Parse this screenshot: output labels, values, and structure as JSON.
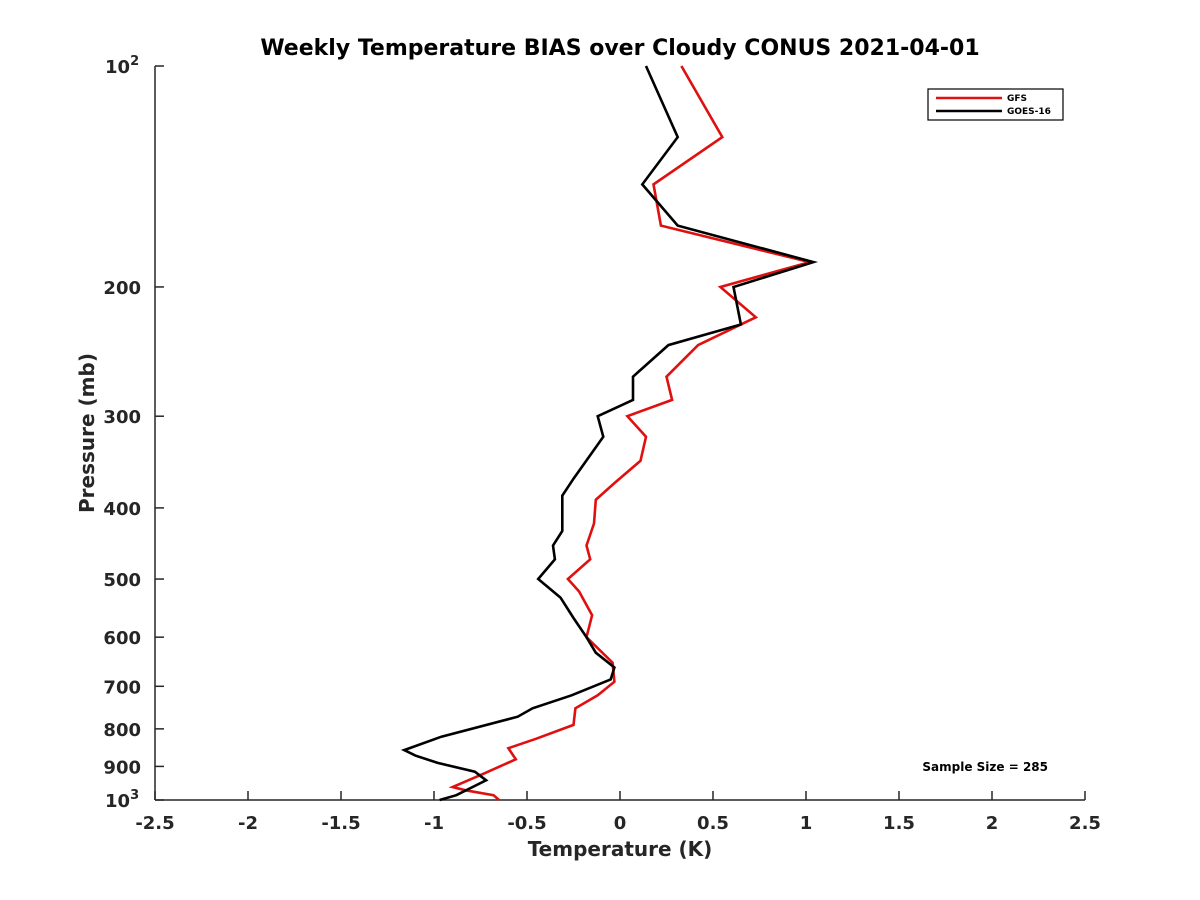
{
  "chart_data": {
    "type": "line",
    "title": "Weekly Temperature BIAS over Cloudy CONUS 2021-04-01",
    "xlabel": "Temperature (K)",
    "ylabel": "Pressure (mb)",
    "xlim": [
      -2.5,
      2.5
    ],
    "ylim": [
      1000,
      100
    ],
    "y_scale": "log",
    "y_reversed": true,
    "grid": false,
    "legend_position": "top-right",
    "x_ticks": [
      {
        "value": -2.5,
        "label": "-2.5"
      },
      {
        "value": -2,
        "label": "-2"
      },
      {
        "value": -1.5,
        "label": "-1.5"
      },
      {
        "value": -1,
        "label": "-1"
      },
      {
        "value": -0.5,
        "label": "-0.5"
      },
      {
        "value": 0,
        "label": "0"
      },
      {
        "value": 0.5,
        "label": "0.5"
      },
      {
        "value": 1,
        "label": "1"
      },
      {
        "value": 1.5,
        "label": "1.5"
      },
      {
        "value": 2,
        "label": "2"
      },
      {
        "value": 2.5,
        "label": "2.5"
      }
    ],
    "y_ticks": [
      {
        "value": 100,
        "base": "10",
        "exp": "2"
      },
      {
        "value": 200,
        "label": "200"
      },
      {
        "value": 300,
        "label": "300"
      },
      {
        "value": 400,
        "label": "400"
      },
      {
        "value": 500,
        "label": "500"
      },
      {
        "value": 600,
        "label": "600"
      },
      {
        "value": 700,
        "label": "700"
      },
      {
        "value": 800,
        "label": "800"
      },
      {
        "value": 900,
        "label": "900"
      },
      {
        "value": 1000,
        "base": "10",
        "exp": "3"
      }
    ],
    "series": [
      {
        "name": "GFS",
        "color": "#e01010",
        "points": [
          {
            "t": 0.33,
            "p": 100
          },
          {
            "t": 0.55,
            "p": 125
          },
          {
            "t": 0.18,
            "p": 145
          },
          {
            "t": 0.22,
            "p": 165
          },
          {
            "t": 1.02,
            "p": 185
          },
          {
            "t": 0.54,
            "p": 200
          },
          {
            "t": 0.73,
            "p": 220
          },
          {
            "t": 0.42,
            "p": 240
          },
          {
            "t": 0.25,
            "p": 265
          },
          {
            "t": 0.28,
            "p": 285
          },
          {
            "t": 0.04,
            "p": 300
          },
          {
            "t": 0.14,
            "p": 320
          },
          {
            "t": 0.11,
            "p": 345
          },
          {
            "t": -0.03,
            "p": 370
          },
          {
            "t": -0.13,
            "p": 390
          },
          {
            "t": -0.14,
            "p": 420
          },
          {
            "t": -0.18,
            "p": 450
          },
          {
            "t": -0.16,
            "p": 470
          },
          {
            "t": -0.28,
            "p": 500
          },
          {
            "t": -0.22,
            "p": 520
          },
          {
            "t": -0.15,
            "p": 560
          },
          {
            "t": -0.18,
            "p": 600
          },
          {
            "t": -0.04,
            "p": 650
          },
          {
            "t": -0.03,
            "p": 690
          },
          {
            "t": -0.12,
            "p": 720
          },
          {
            "t": -0.24,
            "p": 750
          },
          {
            "t": -0.25,
            "p": 790
          },
          {
            "t": -0.45,
            "p": 825
          },
          {
            "t": -0.6,
            "p": 850
          },
          {
            "t": -0.56,
            "p": 880
          },
          {
            "t": -0.73,
            "p": 920
          },
          {
            "t": -0.9,
            "p": 960
          },
          {
            "t": -0.83,
            "p": 970
          },
          {
            "t": -0.68,
            "p": 985
          },
          {
            "t": -0.65,
            "p": 1000
          }
        ]
      },
      {
        "name": "GOES-16",
        "color": "#000000",
        "points": [
          {
            "t": 0.14,
            "p": 100
          },
          {
            "t": 0.31,
            "p": 125
          },
          {
            "t": 0.12,
            "p": 145
          },
          {
            "t": 0.31,
            "p": 165
          },
          {
            "t": 1.04,
            "p": 185
          },
          {
            "t": 0.61,
            "p": 200
          },
          {
            "t": 0.65,
            "p": 225
          },
          {
            "t": 0.26,
            "p": 240
          },
          {
            "t": 0.07,
            "p": 265
          },
          {
            "t": 0.07,
            "p": 285
          },
          {
            "t": -0.12,
            "p": 300
          },
          {
            "t": -0.09,
            "p": 320
          },
          {
            "t": -0.25,
            "p": 365
          },
          {
            "t": -0.31,
            "p": 385
          },
          {
            "t": -0.31,
            "p": 430
          },
          {
            "t": -0.36,
            "p": 450
          },
          {
            "t": -0.35,
            "p": 470
          },
          {
            "t": -0.44,
            "p": 500
          },
          {
            "t": -0.32,
            "p": 530
          },
          {
            "t": -0.25,
            "p": 565
          },
          {
            "t": -0.18,
            "p": 600
          },
          {
            "t": -0.13,
            "p": 630
          },
          {
            "t": -0.03,
            "p": 660
          },
          {
            "t": -0.05,
            "p": 685
          },
          {
            "t": -0.26,
            "p": 720
          },
          {
            "t": -0.47,
            "p": 750
          },
          {
            "t": -0.55,
            "p": 770
          },
          {
            "t": -0.96,
            "p": 820
          },
          {
            "t": -1.16,
            "p": 855
          },
          {
            "t": -1.1,
            "p": 870
          },
          {
            "t": -0.98,
            "p": 890
          },
          {
            "t": -0.78,
            "p": 915
          },
          {
            "t": -0.72,
            "p": 940
          },
          {
            "t": -0.88,
            "p": 985
          },
          {
            "t": -0.97,
            "p": 1000
          }
        ]
      }
    ],
    "annotation": "Sample Size = 285"
  }
}
